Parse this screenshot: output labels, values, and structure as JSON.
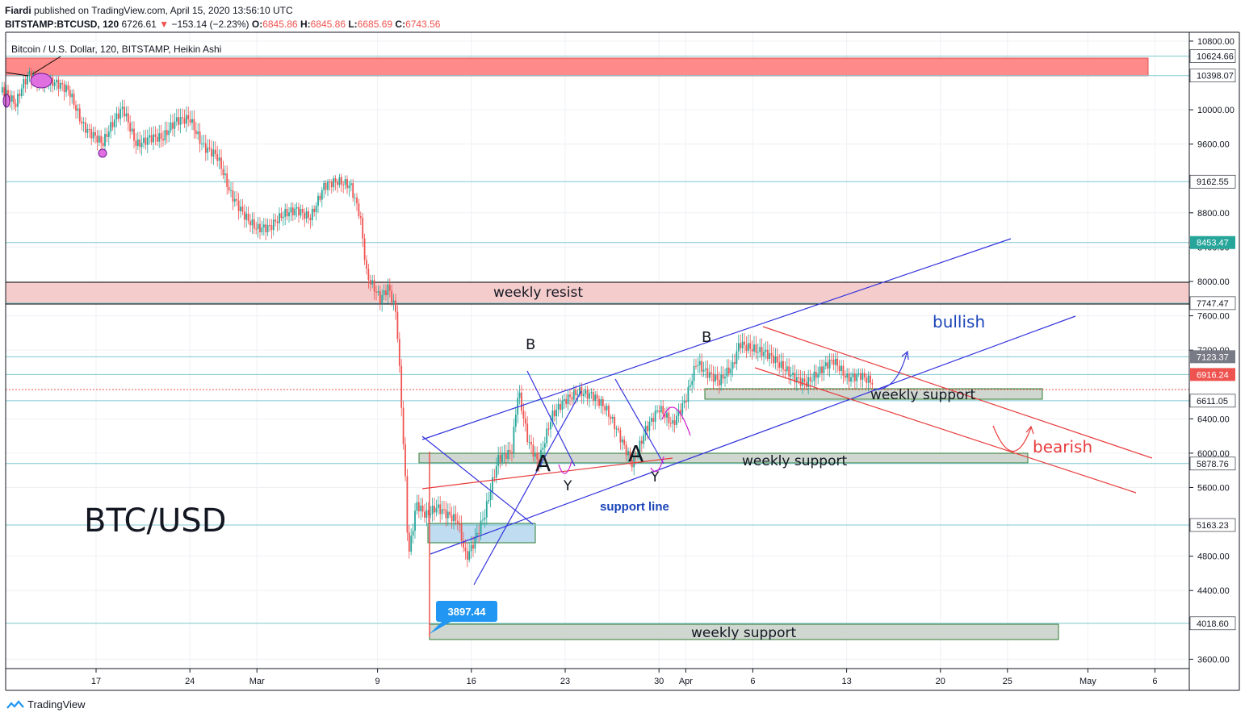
{
  "header": {
    "publisher": "Fiardi",
    "published_text": "published on TradingView.com, April 15, 2020 13:56:10 UTC",
    "symbol": "BITSTAMP:BTCUSD, 120",
    "last": "6726.61",
    "change": "−153.14 (−2.23%)",
    "open_label": "O:",
    "open": "6845.86",
    "high_label": "H:",
    "high": "6845.86",
    "low_label": "L:",
    "low": "6685.69",
    "close_label": "C:",
    "close": "6743.56"
  },
  "chart_title": "Bitcoin / U.S. Dollar, 120, BITSTAMP, Heikin Ashi",
  "footer": {
    "brand": "TradingView"
  },
  "colors": {
    "up": "#26a69a",
    "down": "#ef5350",
    "blue": "#3333dd",
    "red": "#e83c3c",
    "magenta": "#d020d0",
    "tv_blue": "#2196f3"
  },
  "chart_data": {
    "type": "candlestick",
    "title": "Bitcoin / U.S. Dollar, 120, BITSTAMP, Heikin Ashi",
    "watermark": "BTC/USD",
    "ylim": [
      3500,
      10850
    ],
    "y_ticks": [
      "10800.00",
      "10000.00",
      "9600.00",
      "8800.00",
      "8400.00",
      "8000.00",
      "7600.00",
      "7200.00",
      "6400.00",
      "6000.00",
      "5600.00",
      "4800.00",
      "4400.00",
      "3600.00"
    ],
    "x_ticks": [
      {
        "label": "17",
        "day": 17
      },
      {
        "label": "24",
        "day": 24
      },
      {
        "label": "Mar",
        "day": 29
      },
      {
        "label": "9",
        "day": 38
      },
      {
        "label": "16",
        "day": 45
      },
      {
        "label": "23",
        "day": 52
      },
      {
        "label": "30",
        "day": 59
      },
      {
        "label": "Apr",
        "day": 61
      },
      {
        "label": "6",
        "day": 66
      },
      {
        "label": "13",
        "day": 73
      },
      {
        "label": "20",
        "day": 80
      },
      {
        "label": "25",
        "day": 85
      },
      {
        "label": "May",
        "day": 91
      },
      {
        "label": "6",
        "day": 96
      }
    ],
    "price_path": [
      [
        10,
        10200
      ],
      [
        11,
        10050
      ],
      [
        11.5,
        10300
      ],
      [
        12,
        10450
      ],
      [
        13,
        10350
      ],
      [
        14,
        10280
      ],
      [
        15,
        10200
      ],
      [
        16,
        9850
      ],
      [
        17,
        9700
      ],
      [
        17.5,
        9600
      ],
      [
        18,
        9750
      ],
      [
        19,
        10000
      ],
      [
        20,
        9620
      ],
      [
        21,
        9700
      ],
      [
        22,
        9650
      ],
      [
        23,
        9850
      ],
      [
        24,
        9920
      ],
      [
        25,
        9600
      ],
      [
        26,
        9450
      ],
      [
        27,
        9000
      ],
      [
        28,
        8800
      ],
      [
        29,
        8650
      ],
      [
        30,
        8620
      ],
      [
        31,
        8750
      ],
      [
        32,
        8850
      ],
      [
        33,
        8780
      ],
      [
        34,
        9100
      ],
      [
        35,
        9130
      ],
      [
        36,
        9120
      ],
      [
        36.7,
        8800
      ],
      [
        37.2,
        8100
      ],
      [
        37.7,
        7950
      ],
      [
        38.2,
        7780
      ],
      [
        38.8,
        7900
      ],
      [
        39.4,
        7600
      ],
      [
        39.8,
        6500
      ],
      [
        40.1,
        5600
      ],
      [
        40.3,
        4800
      ],
      [
        40.9,
        5450
      ],
      [
        41.6,
        5300
      ],
      [
        42.4,
        5350
      ],
      [
        43.2,
        5250
      ],
      [
        44,
        5200
      ],
      [
        44.6,
        4800
      ],
      [
        45.2,
        5000
      ],
      [
        46,
        5300
      ],
      [
        47,
        5900
      ],
      [
        48,
        6000
      ],
      [
        48.5,
        6750
      ],
      [
        49.2,
        6200
      ],
      [
        50,
        5900
      ],
      [
        51,
        6400
      ],
      [
        52,
        6600
      ],
      [
        53,
        6750
      ],
      [
        54,
        6700
      ],
      [
        55,
        6500
      ],
      [
        56,
        6200
      ],
      [
        57,
        5900
      ],
      [
        58,
        6300
      ],
      [
        59,
        6500
      ],
      [
        60,
        6300
      ],
      [
        61,
        6650
      ],
      [
        61.8,
        7100
      ],
      [
        62.5,
        6950
      ],
      [
        63.5,
        6800
      ],
      [
        64.5,
        7000
      ],
      [
        65,
        7300
      ],
      [
        66,
        7250
      ],
      [
        67,
        7150
      ],
      [
        68,
        7000
      ],
      [
        69,
        6900
      ],
      [
        70,
        6850
      ],
      [
        71,
        6950
      ],
      [
        72,
        7050
      ],
      [
        73,
        6880
      ],
      [
        74,
        6950
      ],
      [
        75,
        6820
      ]
    ],
    "price_lines": [
      {
        "label": "10624.66",
        "price": 10624.66
      },
      {
        "label": "10398.07",
        "price": 10398.07
      },
      {
        "label": "9162.55",
        "price": 9162.55
      },
      {
        "label": "8453.47",
        "price": 8453.47
      },
      {
        "label": "7747.47",
        "price": 7747.47
      },
      {
        "label": "7123.37",
        "price": 7123.37
      },
      {
        "label": "6916.24",
        "price": 6916.24
      },
      {
        "label": "6611.05",
        "price": 6611.05
      },
      {
        "label": "5878.76",
        "price": 5878.76
      },
      {
        "label": "5163.23",
        "price": 5163.23
      },
      {
        "label": "4018.60",
        "price": 4018.6
      }
    ],
    "low_marker": "3897.44",
    "annotations": {
      "weekly_resist": "weekly resist",
      "weekly_support_1": "weekly support",
      "weekly_support_2": "weekly support",
      "weekly_support_3": "weekly support",
      "bullish": "bullish",
      "bearish": "bearish",
      "support_line": "support line",
      "wave_b1": "B",
      "wave_b2": "B",
      "wave_a1": "A",
      "wave_a2": "A",
      "wave_y1": "Y",
      "wave_y2": "Y"
    }
  }
}
